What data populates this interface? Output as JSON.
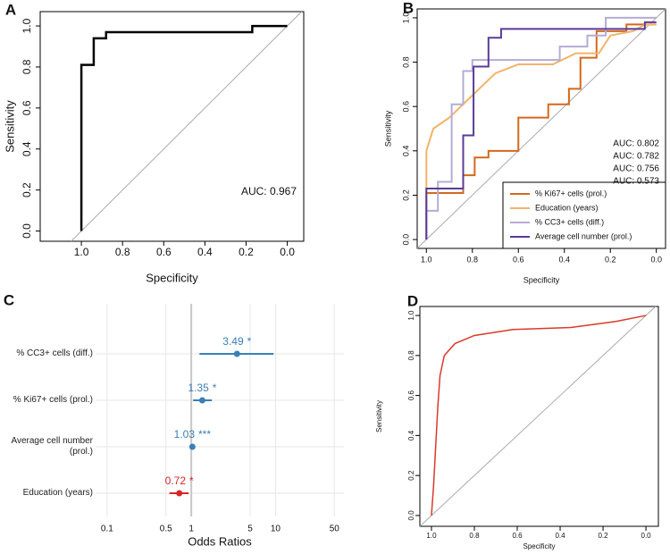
{
  "chart_data": [
    {
      "type": "roc",
      "panel_label": "A",
      "xlabel": "Specificity",
      "ylabel": "Sensitivity",
      "xlim": [
        1.2,
        -0.08
      ],
      "ylim": [
        -0.05,
        1.07
      ],
      "xticks": [
        {
          "value": 1,
          "label": "1.0"
        },
        0.8,
        0.6,
        0.4,
        0.2,
        {
          "value": 0,
          "label": "0.0"
        }
      ],
      "yticks": [
        {
          "value": 0,
          "label": "0.0"
        },
        0.2,
        0.4,
        0.6,
        0.8,
        {
          "value": 1,
          "label": "1.0"
        }
      ],
      "annotation": "AUC: 0.967",
      "series": [
        {
          "color": "#000000",
          "x": [
            1,
            1,
            0.94,
            0.94,
            0.88,
            0.88,
            0.17,
            0.17,
            0
          ],
          "y": [
            0,
            0.81,
            0.81,
            0.94,
            0.94,
            0.97,
            0.97,
            1,
            1
          ]
        }
      ]
    },
    {
      "type": "roc",
      "panel_label": "B",
      "xlabel": "Specificity",
      "ylabel": "Sensitivity",
      "xlim": [
        1.04,
        -0.04
      ],
      "ylim": [
        -0.04,
        1.04
      ],
      "xticks": [
        {
          "value": 1,
          "label": "1.0"
        },
        0.8,
        0.6,
        0.4,
        0.2,
        {
          "value": 0,
          "label": "0.0"
        }
      ],
      "yticks": [
        {
          "value": 0,
          "label": "0.0"
        },
        0.2,
        0.4,
        0.6,
        0.8,
        {
          "value": 1,
          "label": "1.0"
        }
      ],
      "legend": "bottom-right",
      "series": [
        {
          "name": "% Ki67+ cells (prol.)",
          "color": "#d2691e",
          "auc_label": "AUC: 0.573",
          "x": [
            1,
            1,
            0.84,
            0.84,
            0.79,
            0.79,
            0.73,
            0.73,
            0.6,
            0.6,
            0.47,
            0.47,
            0.38,
            0.38,
            0.33,
            0.33,
            0.26,
            0.26,
            0.13,
            0.13,
            0
          ],
          "y": [
            0,
            0.21,
            0.21,
            0.29,
            0.29,
            0.37,
            0.37,
            0.4,
            0.4,
            0.55,
            0.55,
            0.61,
            0.61,
            0.68,
            0.68,
            0.82,
            0.82,
            0.94,
            0.94,
            0.97,
            0.97
          ]
        },
        {
          "name": "Education (years)",
          "color": "#f2b36a",
          "auc_label": "AUC: 0.756",
          "x": [
            1,
            1,
            0.97,
            0.9,
            0.8,
            0.7,
            0.6,
            0.45,
            0.35,
            0.25,
            0.2,
            0.1,
            0.05,
            0
          ],
          "y": [
            0,
            0.4,
            0.5,
            0.55,
            0.65,
            0.75,
            0.79,
            0.79,
            0.84,
            0.84,
            0.92,
            0.94,
            0.97,
            0.97
          ]
        },
        {
          "name": "% CC3+ cells (diff.)",
          "color": "#b5acd6",
          "auc_label": "AUC: 0.782",
          "x": [
            1,
            1,
            0.95,
            0.95,
            0.89,
            0.89,
            0.84,
            0.84,
            0.8,
            0.8,
            0.42,
            0.42,
            0.3,
            0.3,
            0.22,
            0.22,
            0
          ],
          "y": [
            0,
            0.13,
            0.13,
            0.26,
            0.26,
            0.61,
            0.61,
            0.76,
            0.76,
            0.81,
            0.81,
            0.87,
            0.87,
            0.92,
            0.92,
            1,
            1
          ]
        },
        {
          "name": "Average cell number (prol.)",
          "color": "#5a3b99",
          "auc_label": "AUC: 0.802",
          "x": [
            1,
            1,
            0.84,
            0.84,
            0.795,
            0.795,
            0.73,
            0.73,
            0.675,
            0.675,
            0.05,
            0.05,
            0
          ],
          "y": [
            0,
            0.23,
            0.23,
            0.47,
            0.47,
            0.78,
            0.78,
            0.91,
            0.91,
            0.95,
            0.95,
            0.98,
            0.98
          ]
        }
      ]
    },
    {
      "type": "forest",
      "panel_label": "C",
      "xlabel": "Odds Ratios",
      "log_x": true,
      "xlim": [
        0.073,
        65
      ],
      "xticks": [
        0.1,
        0.5,
        1,
        5,
        10,
        50
      ],
      "reference_line": 1,
      "grid": true,
      "categories": [
        "% CC3+ cells (diff.)",
        "% Ki67+ cells (prol.)",
        "Average cell number (prol.)",
        "Education (years)"
      ],
      "values": [
        3.49,
        1.35,
        1.03,
        0.72
      ],
      "ci_low": [
        1.25,
        1.05,
        1.0,
        0.55
      ],
      "ci_high": [
        9.5,
        1.75,
        1.06,
        0.93
      ],
      "stars": [
        "*",
        "*",
        "***",
        "*"
      ],
      "colors": [
        "#3a7fb5",
        "#3a7fb5",
        "#3a7fb5",
        "#d62728"
      ]
    },
    {
      "type": "roc",
      "panel_label": "D",
      "xlabel": "Specificity",
      "ylabel": "Sensitivity",
      "xlim": [
        1.054,
        -0.058
      ],
      "ylim": [
        -0.054,
        1.045
      ],
      "xticks": [
        {
          "value": 1,
          "label": "1.0"
        },
        0.8,
        0.6,
        0.4,
        0.2,
        {
          "value": 0,
          "label": "0.0"
        }
      ],
      "yticks": [
        {
          "value": 0,
          "label": "0.0"
        },
        0.2,
        0.4,
        0.6,
        0.8,
        {
          "value": 1,
          "label": "1.0"
        }
      ],
      "series": [
        {
          "color": "#d93a2b",
          "x": [
            1,
            0.99,
            0.98,
            0.97,
            0.96,
            0.94,
            0.89,
            0.8,
            0.62,
            0.35,
            0.14,
            0
          ],
          "y": [
            0,
            0.15,
            0.35,
            0.55,
            0.7,
            0.8,
            0.86,
            0.9,
            0.93,
            0.94,
            0.97,
            1
          ]
        }
      ]
    }
  ]
}
